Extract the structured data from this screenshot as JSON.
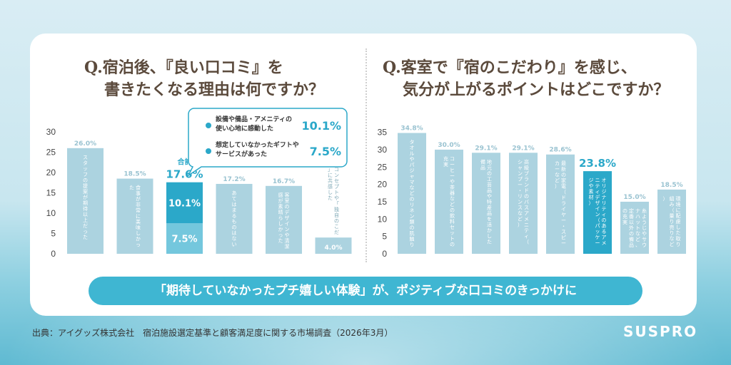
{
  "questions": {
    "left": [
      "Q.宿泊後、『良い口コミ』を",
      "書きたくなる理由は何ですか？"
    ],
    "right": [
      "Q.客室で『宿のこだわり』を感じ、",
      "気分が上がるポイントはどこですか？"
    ]
  },
  "colors": {
    "bar": "#acd3e0",
    "highlight": "#2ba8c9",
    "highlight_light": "#74c7dd",
    "text": "#5b4a3c"
  },
  "chart_data": [
    {
      "type": "bar",
      "yticks": [
        0,
        5,
        10,
        15,
        20,
        25,
        30
      ],
      "ylim": [
        0,
        30
      ],
      "categories": [
        "スタッフの提案が期待以上だった",
        "食事が非常に美味しかった",
        "合計",
        "あてはまるものはない",
        "客室のデザインや清潔感が素晴らしかった",
        "宿のコンセプトや「独自のこだわり」に共感した"
      ],
      "values": [
        26.0,
        18.5,
        17.6,
        17.2,
        16.7,
        4.0
      ],
      "value_labels": [
        "26.0%",
        "18.5%",
        "17.6%",
        "17.2%",
        "16.7%",
        "4.0%"
      ],
      "highlight_index": 2,
      "stack": {
        "top": 10.1,
        "bottom": 7.5,
        "top_label": "10.1%",
        "bottom_label": "7.5%",
        "total_caption": "合計"
      },
      "callout": {
        "items": [
          {
            "text": [
              "設備や備品・アメニティの",
              "使い心地に感動した"
            ],
            "value": "10.1%"
          },
          {
            "text": [
              "想定していなかったギフトや",
              "サービスがあった"
            ],
            "value": "7.5%"
          }
        ]
      }
    },
    {
      "type": "bar",
      "yticks": [
        0,
        5,
        10,
        15,
        20,
        25,
        30,
        35
      ],
      "ylim": [
        0,
        35
      ],
      "categories": [
        "タオルやパジャマなどのリネン類の肌触り",
        "コーヒーや茶器などの飲料セットの充実",
        "地元の工芸品や特産品を活かした備品",
        "高級ブランドのバスアメニティ（シャンプー・リンスなど）",
        "最新の家電（ドライヤー・スピーカーなど）",
        "オリジナリティのあるアメニティデザイン（パッケージや素材）",
        "糸ようじやサウナハットなど、定番以外の備品の充実",
        "環境に配慮した取り組み（量り売りなど）"
      ],
      "values": [
        34.8,
        30.0,
        29.1,
        29.1,
        28.6,
        23.8,
        15.0,
        18.5
      ],
      "value_labels": [
        "34.8%",
        "30.0%",
        "29.1%",
        "29.1%",
        "28.6%",
        "23.8%",
        "15.0%",
        "18.5%"
      ],
      "highlight_index": 5
    }
  ],
  "conclusion": "「期待していなかったプチ嬉しい体験」が、ポジティブな口コミのきっかけに",
  "source": "出典：アイグッズ株式会社　宿泊施設選定基準と顧客満足度に関する市場調査（2026年3月）",
  "logo": "SUSPRO"
}
